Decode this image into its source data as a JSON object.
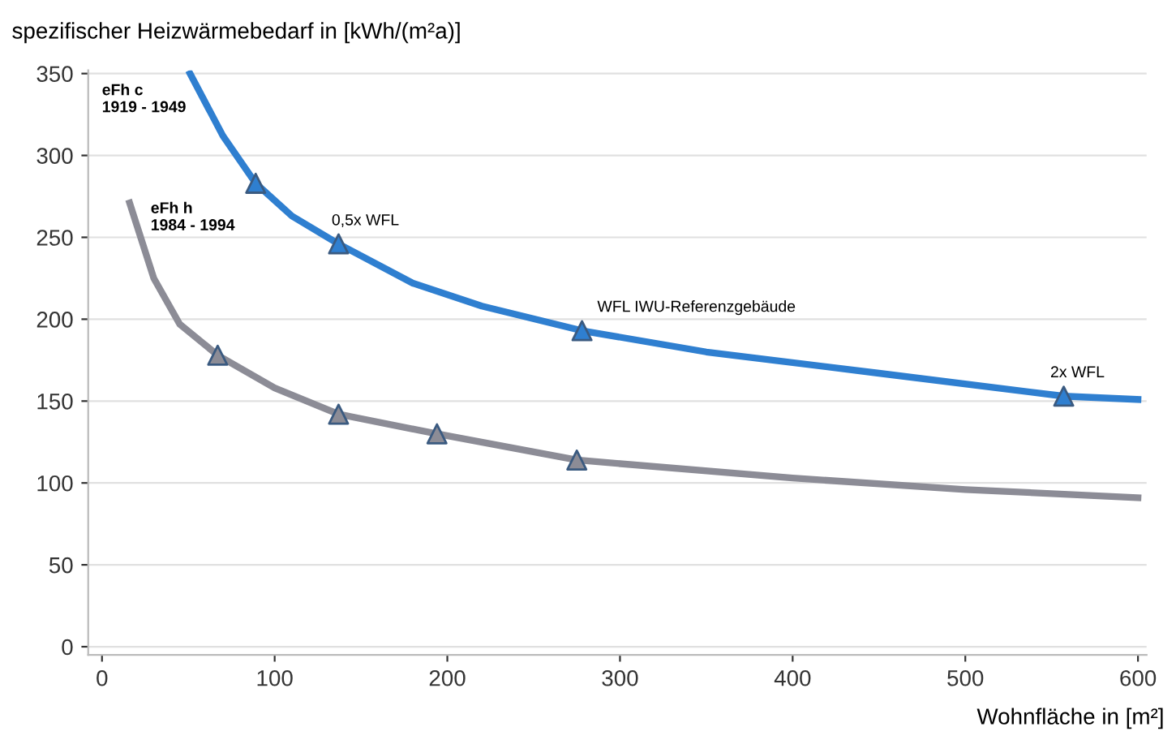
{
  "chart_data": {
    "type": "line",
    "ylabel": "spezifischer Heizwärmebedarf in [kWh/(m²a)]",
    "xlabel": "Wohnfläche in [m²]",
    "series": [
      {
        "color": "#2f7fd0",
        "x": [
          51,
          70,
          89,
          110,
          137,
          180,
          220,
          278,
          350,
          450,
          557,
          600
        ],
        "values": [
          350,
          312,
          283,
          263,
          246,
          222,
          208,
          193,
          180,
          167,
          153,
          151
        ]
      },
      {
        "color": "#8c8c96",
        "x": [
          16,
          30,
          45,
          67,
          100,
          137,
          194,
          275,
          400,
          500,
          600
        ],
        "values": [
          271,
          225,
          197,
          178,
          158,
          142,
          130,
          114,
          103,
          96,
          91
        ]
      },
      {
        "type": "scatter",
        "marker": "triangle",
        "color": "#2f7fd0",
        "x": [
          89,
          137,
          278,
          557
        ],
        "values": [
          283,
          246,
          193,
          153
        ]
      },
      {
        "type": "scatter",
        "marker": "triangle",
        "color": "#8c8c96",
        "x": [
          67,
          137,
          194,
          275
        ],
        "values": [
          178,
          142,
          130,
          114
        ]
      }
    ],
    "annotations": [
      "eFh c\n1919 - 1949",
      "eFh h\n1984 - 1994",
      "0,5x WFL",
      "WFL IWU-Referenzgebäude",
      "2x WFL"
    ],
    "xlim": [
      -8,
      605
    ],
    "ylim": [
      -5,
      352
    ],
    "xticks": [
      0,
      100,
      200,
      300,
      400,
      500,
      600
    ],
    "yticks": [
      0,
      50,
      100,
      150,
      200,
      250,
      300,
      350
    ],
    "grid": "y",
    "marker": "none",
    "line_style": "solid"
  }
}
